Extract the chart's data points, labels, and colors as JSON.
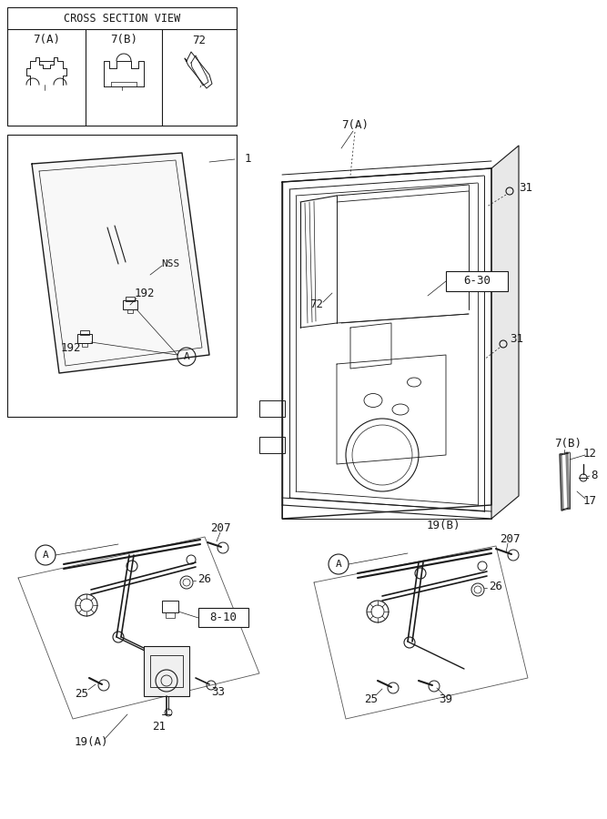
{
  "bg_color": "#ffffff",
  "line_color": "#1a1a1a",
  "fig_width": 6.67,
  "fig_height": 9.0,
  "labels": {
    "cross_section": "CROSS SECTION VIEW",
    "7A": "7(A)",
    "7B": "7(B)",
    "72": "72",
    "1": "1",
    "NSS": "NSS",
    "192a": "192",
    "192b": "192",
    "31a": "31",
    "31b": "31",
    "6_30": "6-30",
    "72_main": "72",
    "7A_main": "7(A)",
    "7B_side": "7(B)",
    "12": "12",
    "8": "8",
    "17": "17",
    "207a": "207",
    "26a": "26",
    "25a": "25",
    "21": "21",
    "33": "33",
    "19A": "19(A)",
    "8_10": "8-10",
    "A_label": "A",
    "207b": "207",
    "26b": "26",
    "25b": "25",
    "39": "39",
    "19B": "19(B)"
  }
}
